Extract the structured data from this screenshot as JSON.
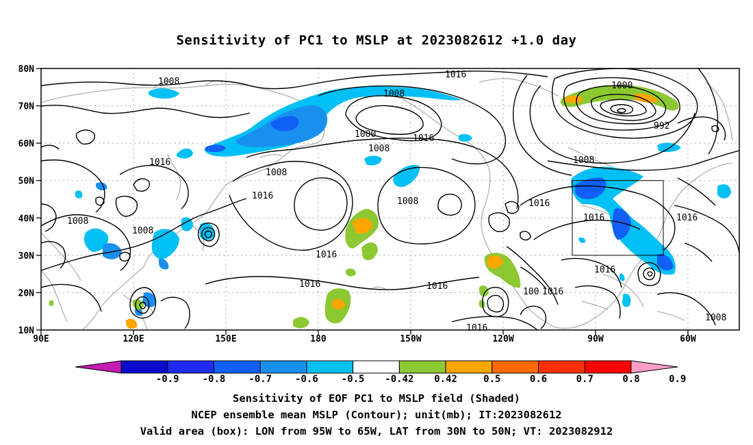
{
  "title": "Sensitivity of PC1 to MSLP at 2023082612 +1.0 day",
  "lat_labels": [
    "80N",
    "70N",
    "60N",
    "50N",
    "40N",
    "30N",
    "20N",
    "10N"
  ],
  "lon_labels": [
    "90E",
    "120E",
    "150E",
    "180",
    "150W",
    "120W",
    "90W",
    "60W"
  ],
  "isobar_labels": [
    "1008",
    "1008",
    "1016",
    "1000",
    "1008",
    "1016",
    "1000",
    "992",
    "1016",
    "1008",
    "1008",
    "1016",
    "1008",
    "1008",
    "1016",
    "1016",
    "1016",
    "1016",
    "1016",
    "1016",
    "1016",
    "1016",
    "100",
    "1016",
    "1008",
    "1008"
  ],
  "colorbar": {
    "labels": [
      "-0.9",
      "-0.8",
      "-0.7",
      "-0.6",
      "-0.5",
      "-0.42",
      "0.42",
      "0.5",
      "0.6",
      "0.7",
      "0.8",
      "0.9"
    ],
    "colors": [
      "#c41bb0",
      "#0a0acd",
      "#1e2cf0",
      "#1060f5",
      "#1890f0",
      "#00c0f5",
      "#ffffff",
      "#8cc832",
      "#ffa500",
      "#ff6b00",
      "#ff3000",
      "#ff0000",
      "#ff9ec8"
    ]
  },
  "valid_box": {
    "lon_from": "95W",
    "lon_to": "65W",
    "lat_from": "30N",
    "lat_to": "50N"
  },
  "footer": {
    "line1": "Sensitivity of EOF PC1 to MSLP field (Shaded)",
    "line2": "NCEP ensemble mean MSLP (Contour); unit(mb); IT:2023082612",
    "line3": "Valid area (box): LON from 95W to 65W, LAT from 30N to 50N; VT: 2023082912"
  }
}
